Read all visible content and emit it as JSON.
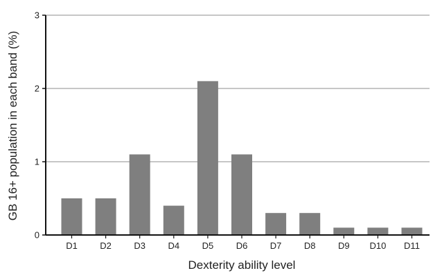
{
  "chart_data": {
    "type": "bar",
    "title": "",
    "xlabel": "Dexterity ability level",
    "ylabel": "GB 16+ population in each band (%)",
    "categories": [
      "D1",
      "D2",
      "D3",
      "D4",
      "D5",
      "D6",
      "D7",
      "D8",
      "D9",
      "D10",
      "D11"
    ],
    "values": [
      0.5,
      0.5,
      1.1,
      0.4,
      2.1,
      1.1,
      0.3,
      0.3,
      0.1,
      0.1,
      0.1
    ],
    "ylim": [
      0,
      3
    ],
    "yticks": [
      0,
      1,
      2,
      3
    ],
    "grid": true,
    "bar_color": "#7f7f7f",
    "grid_color": "#8c8c8c",
    "axis_color": "#111111"
  }
}
